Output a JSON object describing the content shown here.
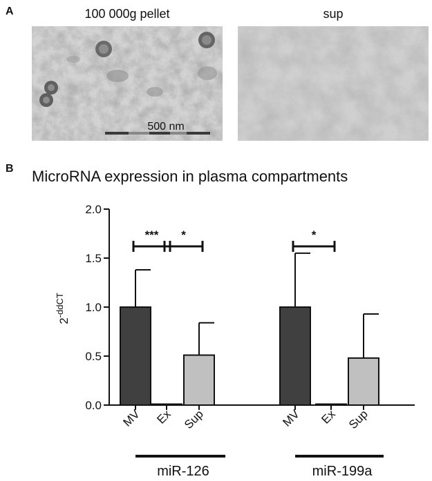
{
  "panel_a": {
    "letter": "A",
    "left_title": "100 000g pellet",
    "right_title": "sup",
    "scale_bar": "500 nm"
  },
  "panel_b": {
    "letter": "B",
    "title": "MicroRNA expression in plasma compartments"
  },
  "chart_data": {
    "type": "bar",
    "title": "MicroRNA expression in plasma compartments",
    "ylabel": "2",
    "ylabel_superscript": "-ddCT",
    "ylim": [
      0,
      2.0
    ],
    "yticks": [
      "0.0",
      "0.5",
      "1.0",
      "1.5",
      "2.0"
    ],
    "grid": false,
    "groups": [
      {
        "name": "miR-126",
        "categories": [
          "MV",
          "Ex",
          "Sup"
        ],
        "values": [
          1.0,
          0.01,
          0.51
        ],
        "errors": [
          0.38,
          0.0,
          0.33
        ],
        "colors": [
          "#404040",
          "#404040",
          "#c0c0c0"
        ],
        "significance": [
          {
            "from": 0,
            "to": 1,
            "label": "***"
          },
          {
            "from": 1,
            "to": 2,
            "label": "*"
          }
        ]
      },
      {
        "name": "miR-199a",
        "categories": [
          "MV",
          "Ex",
          "Sup"
        ],
        "values": [
          1.0,
          0.01,
          0.48
        ],
        "errors": [
          0.55,
          0.0,
          0.45
        ],
        "colors": [
          "#404040",
          "#404040",
          "#c0c0c0"
        ],
        "significance": [
          {
            "from": 0,
            "to": 1,
            "label": "*"
          }
        ]
      }
    ]
  }
}
